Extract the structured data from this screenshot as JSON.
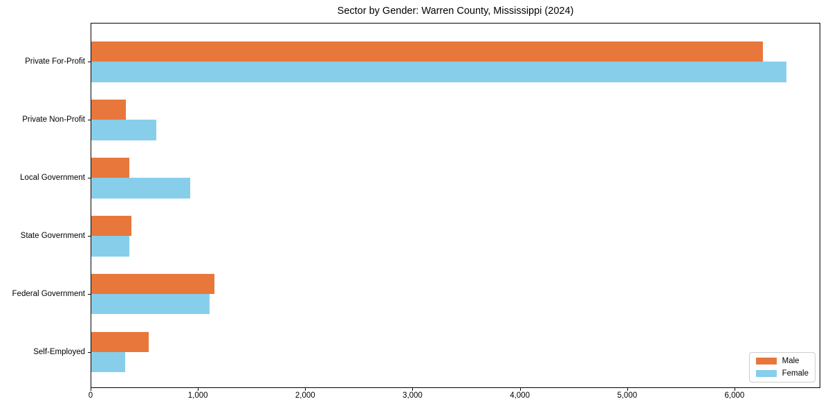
{
  "chart_data": {
    "type": "bar",
    "orientation": "horizontal",
    "title": "Sector by Gender: Warren County, Mississippi (2024)",
    "categories": [
      "Private For-Profit",
      "Private Non-Profit",
      "Local Government",
      "State Government",
      "Federal Government",
      "Self-Employed"
    ],
    "series": [
      {
        "name": "Male",
        "color": "#E8773B",
        "values": [
          6260,
          322,
          354,
          374,
          1145,
          537
        ]
      },
      {
        "name": "Female",
        "color": "#87CEEB",
        "values": [
          6475,
          608,
          921,
          354,
          1104,
          316
        ]
      }
    ],
    "xlabel": "",
    "ylabel": "",
    "xlim": [
      0,
      6800
    ],
    "x_ticks": [
      0,
      1000,
      2000,
      3000,
      4000,
      5000,
      6000
    ],
    "x_tick_labels": [
      "0",
      "1,000",
      "2,000",
      "3,000",
      "4,000",
      "5,000",
      "6,000"
    ],
    "grid": false,
    "legend_position": "lower right",
    "plot_border_color": "#000000",
    "background_color": "#ffffff"
  }
}
